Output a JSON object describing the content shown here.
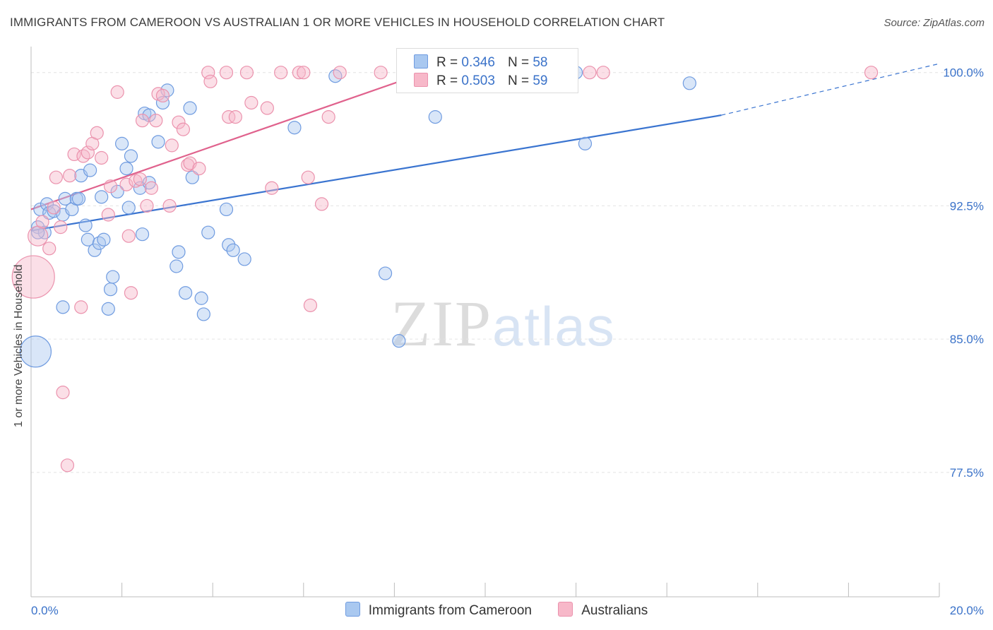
{
  "title": "IMMIGRANTS FROM CAMEROON VS AUSTRALIAN 1 OR MORE VEHICLES IN HOUSEHOLD CORRELATION CHART",
  "source": "Source: ZipAtlas.com",
  "watermark": {
    "zip": "ZIP",
    "atlas": "atlas"
  },
  "legend_top": [
    {
      "r_label": "R =",
      "r_value": "0.346",
      "n_label": "N =",
      "n_value": "58",
      "color": "#a9c8f0"
    },
    {
      "r_label": "R =",
      "r_value": "0.503",
      "n_label": "N =",
      "n_value": "59",
      "color": "#f7b8c9"
    }
  ],
  "chart_data": {
    "type": "scatter",
    "xlabel": "",
    "ylabel": "1 or more Vehicles in Household",
    "x_tick_labels": {
      "left": "0.0%",
      "right": "20.0%"
    },
    "y_tick_labels": [
      "100.0%",
      "92.5%",
      "85.0%",
      "77.5%"
    ],
    "y_ticks": [
      100.0,
      92.5,
      85.0,
      77.5
    ],
    "xlim": [
      0,
      20
    ],
    "ylim": [
      70.5,
      101.3
    ],
    "grid": true,
    "series": [
      {
        "name": "Immigrants from Cameroon",
        "color": "#3a74d0",
        "fill": "rgba(170,200,240,0.45)",
        "stroke": "#6f9be0",
        "trend": {
          "x0": 0.0,
          "y0": 91.1,
          "x1": 15.2,
          "y1": 97.6,
          "dash_to_x": 20.0,
          "dash_to_y": 100.5
        },
        "points": [
          [
            0.1,
            84.3
          ],
          [
            0.15,
            91.3
          ],
          [
            0.2,
            92.3
          ],
          [
            0.3,
            91.0
          ],
          [
            0.35,
            92.6
          ],
          [
            0.4,
            92.1
          ],
          [
            0.5,
            92.2
          ],
          [
            0.7,
            92.0
          ],
          [
            0.75,
            92.9
          ],
          [
            0.9,
            92.3
          ],
          [
            1.0,
            92.9
          ],
          [
            1.1,
            94.2
          ],
          [
            1.2,
            91.4
          ],
          [
            1.25,
            90.6
          ],
          [
            1.3,
            94.5
          ],
          [
            1.4,
            90.0
          ],
          [
            1.5,
            90.4
          ],
          [
            1.55,
            93.0
          ],
          [
            1.6,
            90.6
          ],
          [
            1.7,
            86.7
          ],
          [
            1.75,
            87.8
          ],
          [
            1.8,
            88.5
          ],
          [
            1.9,
            93.3
          ],
          [
            2.0,
            96.0
          ],
          [
            2.1,
            94.6
          ],
          [
            2.15,
            92.4
          ],
          [
            2.2,
            95.3
          ],
          [
            2.4,
            93.5
          ],
          [
            2.45,
            90.9
          ],
          [
            2.5,
            97.7
          ],
          [
            2.6,
            97.6
          ],
          [
            2.6,
            93.8
          ],
          [
            2.8,
            96.1
          ],
          [
            2.9,
            98.3
          ],
          [
            3.0,
            99.0
          ],
          [
            3.2,
            89.1
          ],
          [
            3.25,
            89.9
          ],
          [
            3.4,
            87.6
          ],
          [
            3.5,
            98.0
          ],
          [
            3.55,
            94.1
          ],
          [
            3.75,
            87.3
          ],
          [
            3.8,
            86.4
          ],
          [
            3.9,
            91.0
          ],
          [
            4.3,
            92.3
          ],
          [
            4.35,
            90.3
          ],
          [
            4.45,
            90.0
          ],
          [
            4.7,
            89.5
          ],
          [
            0.7,
            86.8
          ],
          [
            5.8,
            96.9
          ],
          [
            6.7,
            99.8
          ],
          [
            7.8,
            88.7
          ],
          [
            8.1,
            84.9
          ],
          [
            8.9,
            97.5
          ],
          [
            12.0,
            100.0
          ],
          [
            12.2,
            96.0
          ],
          [
            14.5,
            99.4
          ],
          [
            0.15,
            91.0
          ],
          [
            1.05,
            92.9
          ]
        ],
        "sizes": {
          "0": 22
        }
      },
      {
        "name": "Australians",
        "color": "#e0628d",
        "fill": "rgba(247,184,201,0.45)",
        "stroke": "#eb92ad",
        "trend": {
          "x0": 0.0,
          "y0": 92.3,
          "x1": 8.9,
          "y1": 100.2
        },
        "points": [
          [
            0.05,
            88.5
          ],
          [
            0.15,
            90.8
          ],
          [
            0.25,
            91.6
          ],
          [
            0.4,
            90.1
          ],
          [
            0.5,
            92.4
          ],
          [
            0.55,
            94.1
          ],
          [
            0.65,
            91.3
          ],
          [
            0.7,
            82.0
          ],
          [
            0.8,
            77.9
          ],
          [
            0.85,
            94.2
          ],
          [
            0.95,
            95.4
          ],
          [
            1.1,
            86.8
          ],
          [
            1.15,
            95.3
          ],
          [
            1.25,
            95.5
          ],
          [
            1.35,
            96.0
          ],
          [
            1.45,
            96.6
          ],
          [
            1.55,
            95.2
          ],
          [
            1.7,
            92.0
          ],
          [
            1.75,
            93.6
          ],
          [
            1.9,
            98.9
          ],
          [
            2.1,
            93.7
          ],
          [
            2.15,
            90.8
          ],
          [
            2.2,
            87.6
          ],
          [
            2.3,
            93.9
          ],
          [
            2.4,
            94.0
          ],
          [
            2.45,
            97.3
          ],
          [
            2.55,
            92.5
          ],
          [
            2.65,
            93.5
          ],
          [
            2.75,
            97.3
          ],
          [
            2.8,
            98.8
          ],
          [
            2.9,
            98.7
          ],
          [
            3.05,
            92.5
          ],
          [
            3.1,
            95.9
          ],
          [
            3.25,
            97.2
          ],
          [
            3.35,
            96.8
          ],
          [
            3.45,
            94.8
          ],
          [
            3.5,
            94.9
          ],
          [
            3.7,
            94.6
          ],
          [
            3.9,
            100.0
          ],
          [
            3.95,
            99.5
          ],
          [
            4.3,
            100.0
          ],
          [
            4.35,
            97.5
          ],
          [
            4.5,
            97.5
          ],
          [
            4.75,
            100.0
          ],
          [
            4.85,
            98.3
          ],
          [
            5.2,
            98.0
          ],
          [
            5.3,
            93.5
          ],
          [
            5.5,
            100.0
          ],
          [
            5.9,
            100.0
          ],
          [
            6.0,
            100.0
          ],
          [
            6.1,
            94.1
          ],
          [
            6.15,
            86.9
          ],
          [
            6.4,
            92.6
          ],
          [
            6.55,
            97.5
          ],
          [
            6.8,
            100.0
          ],
          [
            7.7,
            100.0
          ],
          [
            12.3,
            100.0
          ],
          [
            12.6,
            100.0
          ],
          [
            18.5,
            100.0
          ]
        ],
        "sizes": {
          "0": 30,
          "1": 14
        }
      }
    ]
  },
  "legend_bottom": [
    {
      "label": "Immigrants from Cameroon",
      "color": "#a9c8f0",
      "border": "#6f9be0"
    },
    {
      "label": "Australians",
      "color": "#f7b8c9",
      "border": "#eb92ad"
    }
  ]
}
